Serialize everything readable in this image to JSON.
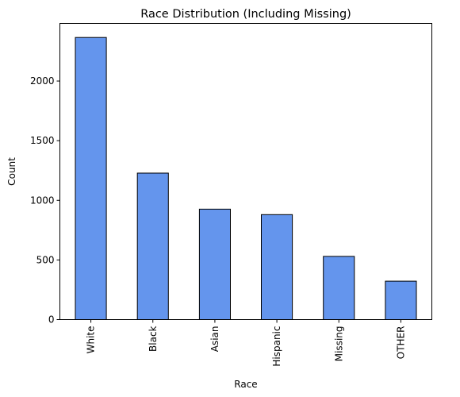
{
  "chart_data": {
    "type": "bar",
    "title": "Race Distribution (Including Missing)",
    "xlabel": "Race",
    "ylabel": "Count",
    "categories": [
      "White",
      "Black",
      "Asian",
      "Hispanic",
      "Missing",
      "OTHER"
    ],
    "values": [
      2365,
      1228,
      926,
      880,
      530,
      322
    ],
    "ylim": [
      0,
      2483
    ],
    "yticks": [
      0,
      500,
      1000,
      1500,
      2000
    ],
    "bar_color": "#6495ed",
    "edge_color": "#000000",
    "grid": false,
    "legend": "none"
  }
}
